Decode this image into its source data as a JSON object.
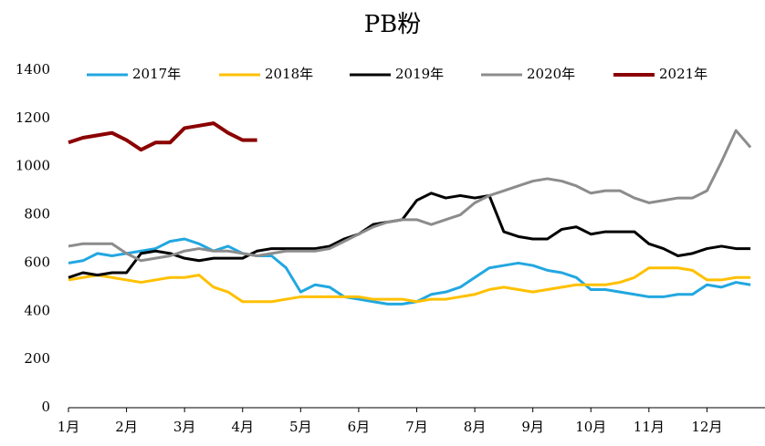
{
  "chart_data": {
    "type": "line",
    "title": "PB粉",
    "categories": [
      "1月",
      null,
      null,
      null,
      "2月",
      null,
      null,
      null,
      "3月",
      null,
      null,
      null,
      "4月",
      null,
      null,
      null,
      "5月",
      null,
      null,
      null,
      "6月",
      null,
      null,
      null,
      "7月",
      null,
      null,
      null,
      "8月",
      null,
      null,
      null,
      "9月",
      null,
      null,
      null,
      "10月",
      null,
      null,
      null,
      "11月",
      null,
      null,
      null,
      "12月",
      null,
      null,
      null
    ],
    "ylim": [
      0,
      1400
    ],
    "yticks": [
      0,
      200,
      400,
      600,
      800,
      1000,
      1200,
      1400
    ],
    "grid": false,
    "legend": "top",
    "series": [
      {
        "name": "2017年",
        "color": "#22a7e0",
        "values": [
          600,
          610,
          640,
          630,
          640,
          650,
          660,
          690,
          700,
          680,
          650,
          670,
          640,
          630,
          630,
          580,
          480,
          510,
          500,
          460,
          450,
          440,
          430,
          430,
          440,
          470,
          480,
          500,
          540,
          580,
          590,
          600,
          590,
          570,
          560,
          540,
          490,
          490,
          480,
          470,
          460,
          460,
          470,
          470,
          510,
          500,
          520,
          510
        ]
      },
      {
        "name": "2018年",
        "color": "#ffc000",
        "values": [
          530,
          540,
          550,
          540,
          530,
          520,
          530,
          540,
          540,
          550,
          500,
          480,
          440,
          440,
          440,
          450,
          460,
          460,
          460,
          460,
          460,
          450,
          450,
          450,
          440,
          450,
          450,
          460,
          470,
          490,
          500,
          490,
          480,
          490,
          500,
          510,
          510,
          510,
          520,
          540,
          580,
          580,
          580,
          570,
          530,
          530,
          540,
          540
        ]
      },
      {
        "name": "2019年",
        "color": "#000000",
        "values": [
          540,
          560,
          550,
          560,
          560,
          640,
          650,
          640,
          620,
          610,
          620,
          620,
          620,
          650,
          660,
          660,
          660,
          660,
          670,
          700,
          720,
          760,
          770,
          780,
          860,
          890,
          870,
          880,
          870,
          880,
          730,
          710,
          700,
          700,
          740,
          750,
          720,
          730,
          730,
          730,
          680,
          660,
          630,
          640,
          660,
          670,
          660,
          660
        ]
      },
      {
        "name": "2020年",
        "color": "#8c8c8c",
        "values": [
          670,
          680,
          680,
          680,
          640,
          610,
          620,
          630,
          650,
          660,
          650,
          650,
          640,
          630,
          640,
          650,
          650,
          650,
          660,
          690,
          720,
          750,
          770,
          780,
          780,
          760,
          780,
          800,
          850,
          880,
          900,
          920,
          940,
          950,
          940,
          920,
          890,
          900,
          900,
          870,
          850,
          860,
          870,
          870,
          900,
          1020,
          1150,
          1080
        ]
      },
      {
        "name": "2021年",
        "color": "#8b0000",
        "values": [
          1100,
          1120,
          1130,
          1140,
          1110,
          1070,
          1100,
          1100,
          1160,
          1170,
          1180,
          1140,
          1110,
          1110,
          null,
          null,
          null,
          null,
          null,
          null,
          null,
          null,
          null,
          null,
          null,
          null,
          null,
          null,
          null,
          null,
          null,
          null,
          null,
          null,
          null,
          null,
          null,
          null,
          null,
          null,
          null,
          null,
          null,
          null,
          null,
          null,
          null,
          null
        ]
      }
    ]
  }
}
